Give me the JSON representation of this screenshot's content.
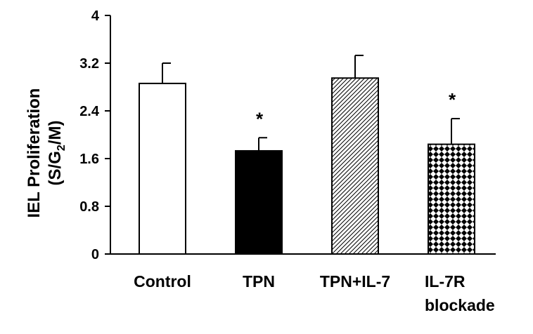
{
  "chart_data": {
    "type": "bar",
    "title": "",
    "xlabel": "",
    "ylabel": "IEL Proliferation",
    "ylabel_line2_prefix": "(S/G",
    "ylabel_line2_sub": "2",
    "ylabel_line2_suffix": "/M)",
    "ylim": [
      0,
      4
    ],
    "yticks": [
      {
        "value": 0,
        "label": "0"
      },
      {
        "value": 0.8,
        "label": "0.8"
      },
      {
        "value": 1.6,
        "label": "1.6"
      },
      {
        "value": 2.4,
        "label": "2.4"
      },
      {
        "value": 3.2,
        "label": "3.2"
      },
      {
        "value": 4,
        "label": "4"
      }
    ],
    "grid": false,
    "bars": [
      {
        "category": "Control",
        "label_lines": [
          "Control"
        ],
        "value": 2.86,
        "error": 0.34,
        "fill": "white",
        "significance": ""
      },
      {
        "category": "TPN",
        "label_lines": [
          "TPN"
        ],
        "value": 1.73,
        "error": 0.22,
        "fill": "black",
        "significance": "*"
      },
      {
        "category": "TPN+IL-7",
        "label_lines": [
          "TPN+IL-7"
        ],
        "value": 2.95,
        "error": 0.38,
        "fill": "diagonal-hatch",
        "significance": ""
      },
      {
        "category": "IL-7R blockade",
        "label_lines": [
          "IL-7R",
          "blockade"
        ],
        "value": 1.84,
        "error": 0.43,
        "fill": "checker",
        "significance": "*"
      }
    ]
  }
}
